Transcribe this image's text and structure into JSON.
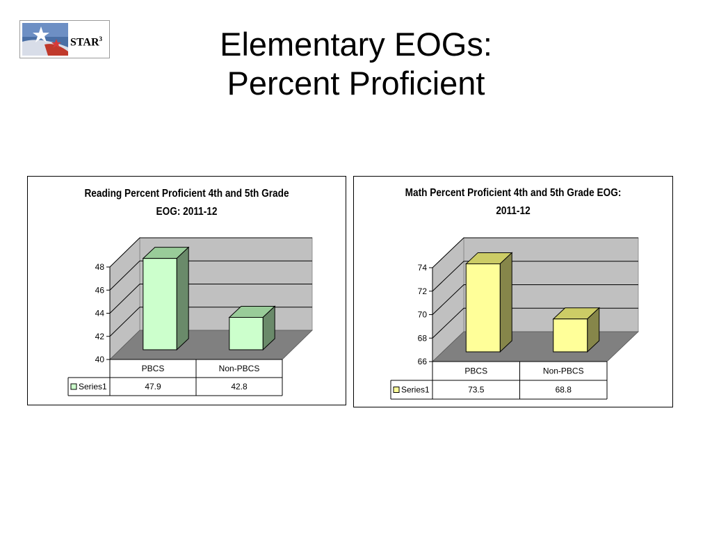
{
  "slide": {
    "title_line1": "Elementary EOGs:",
    "title_line2": "Percent Proficient"
  },
  "logo": {
    "text": "STAR",
    "superscript": "3"
  },
  "chart_data": [
    {
      "type": "bar",
      "title": "Reading Percent Proficient 4th and 5th Grade EOG: 2011-12",
      "title_line1": "Reading Percent Proficient 4th and 5th Grade",
      "title_line2": "EOG: 2011-12",
      "categories": [
        "PBCS",
        "Non-PBCS"
      ],
      "series": [
        {
          "name": "Series1",
          "values": [
            47.9,
            42.8
          ]
        }
      ],
      "value_labels": [
        "47.9",
        "42.8"
      ],
      "ylim": [
        40,
        48
      ],
      "yticks": [
        "40",
        "42",
        "44",
        "46",
        "48"
      ],
      "grid": true,
      "legend_placement": "data-table-left",
      "bar_color": "#ccffcc",
      "bar_side_color": "#6a8a6a",
      "bar_top_color": "#99cc99"
    },
    {
      "type": "bar",
      "title": "Math Percent Proficient 4th and 5th Grade EOG: 2011-12",
      "title_line1": "Math Percent Proficient 4th and 5th Grade EOG:",
      "title_line2": "2011-12",
      "categories": [
        "PBCS",
        "Non-PBCS"
      ],
      "series": [
        {
          "name": "Series1",
          "values": [
            73.5,
            68.8
          ]
        }
      ],
      "value_labels": [
        "73.5",
        "68.8"
      ],
      "ylim": [
        66,
        74
      ],
      "yticks": [
        "66",
        "68",
        "70",
        "72",
        "74"
      ],
      "grid": true,
      "legend_placement": "data-table-left",
      "bar_color": "#ffff99",
      "bar_side_color": "#86864a",
      "bar_top_color": "#cccc66"
    }
  ]
}
